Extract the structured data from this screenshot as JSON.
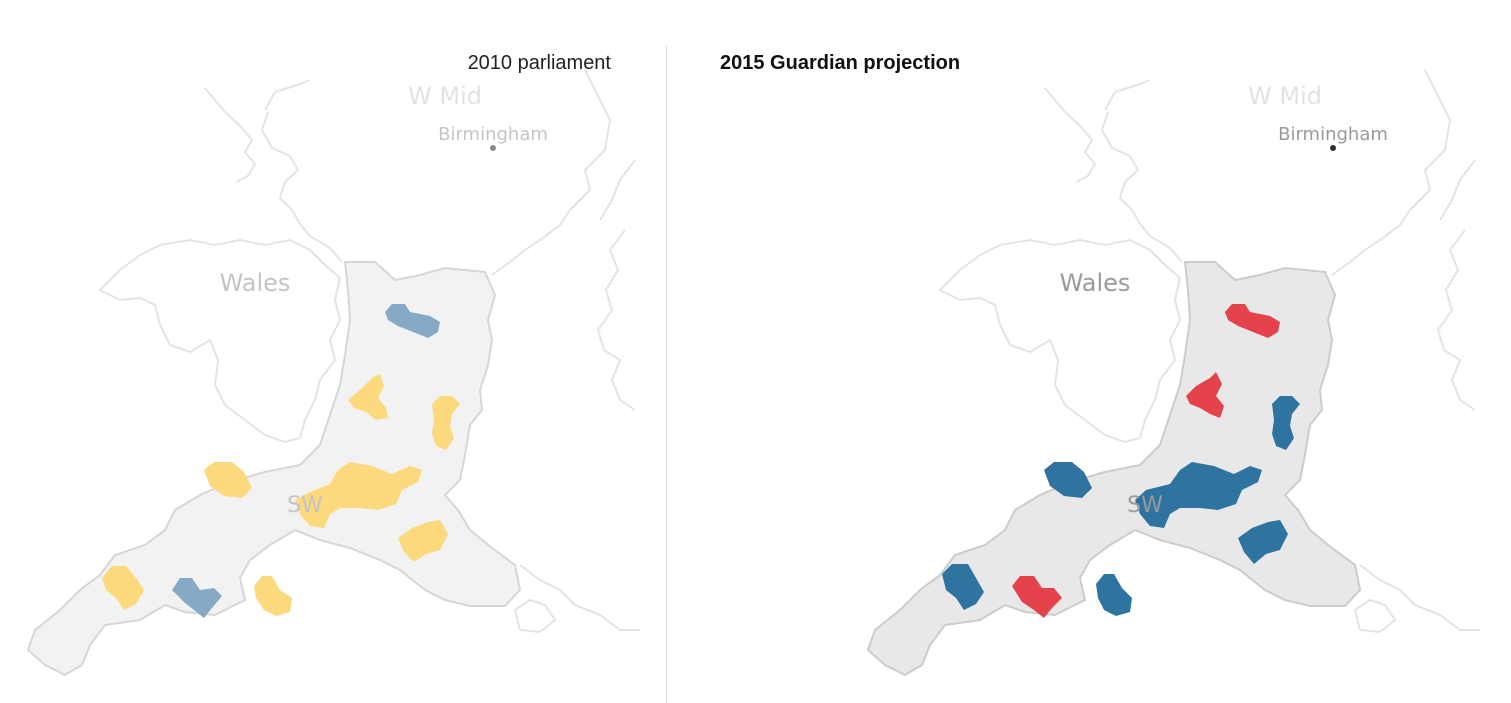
{
  "panels": [
    {
      "id": "left",
      "title": "2010 parliament",
      "labels": {
        "wmid": "W Mid",
        "birmingham": "Birmingham",
        "wales": "Wales",
        "sw": "SW"
      },
      "region_fill": "#f2f2f2",
      "region_stroke": "#d6d6d6",
      "label_color": "#c4c4c4",
      "city_dot_color": "#888888"
    },
    {
      "id": "right",
      "title": "2015 Guardian projection",
      "labels": {
        "wmid": "W Mid",
        "birmingham": "Birmingham",
        "wales": "Wales",
        "sw": "SW"
      },
      "region_fill": "#e8e8e8",
      "region_stroke": "#cccccc",
      "label_color": "#9a9a9a",
      "city_dot_color": "#333333"
    }
  ],
  "party_colors": {
    "libdem": "#fdd97d",
    "con_light": "#86aac5",
    "con": "#2f74a0",
    "lab": "#e5434c"
  }
}
